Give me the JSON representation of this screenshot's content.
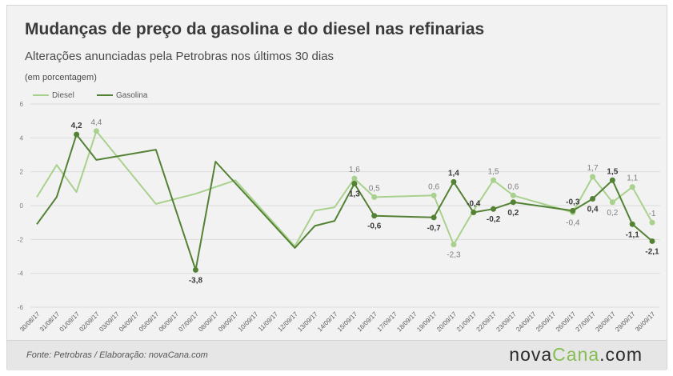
{
  "header": {
    "title": "Mudanças de preço da gasolina e do diesel nas refinarias",
    "subtitle": "Alterações anunciadas pela Petrobras nos últimos 30 dias",
    "unit": "(em porcentagem)"
  },
  "footer": {
    "source": "Fonte: Petrobras / Elaboração: novaCana.com",
    "brand_part1": "nova",
    "brand_part2": "Cana",
    "brand_part3": ".com"
  },
  "colors": {
    "diesel": "#a9d18e",
    "gasolina": "#548235",
    "card": "#f2f2f2"
  },
  "chart_data": {
    "type": "line",
    "legend_position": "top-left",
    "grid": true,
    "ylim": [
      -6,
      6
    ],
    "yticks": [
      "-6",
      "-4",
      "-2",
      "0",
      "2",
      "4",
      "6"
    ],
    "categories": [
      "30/08/17",
      "31/08/17",
      "01/09/17",
      "02/09/17",
      "03/09/17",
      "04/09/17",
      "05/09/17",
      "06/09/17",
      "07/09/17",
      "08/09/17",
      "09/09/17",
      "10/09/17",
      "11/09/17",
      "12/09/17",
      "13/09/17",
      "14/09/17",
      "15/09/17",
      "16/09/17",
      "17/09/17",
      "18/09/17",
      "19/09/17",
      "20/09/17",
      "21/09/17",
      "22/09/17",
      "23/09/17",
      "24/09/17",
      "25/09/17",
      "26/09/17",
      "27/09/17",
      "28/09/17",
      "29/09/17",
      "30/09/17"
    ],
    "series": [
      {
        "name": "Diesel",
        "values": [
          0.5,
          2.4,
          0.8,
          4.4,
          null,
          null,
          0.1,
          null,
          0.7,
          null,
          1.5,
          null,
          null,
          -2.4,
          -0.3,
          -0.1,
          1.6,
          0.5,
          null,
          null,
          0.6,
          -2.3,
          -0.3,
          1.5,
          0.6,
          null,
          null,
          -0.4,
          1.7,
          0.2,
          1.1,
          -1
        ],
        "data_labels": [
          {
            "index": 3,
            "text": "4,4"
          },
          {
            "index": 16,
            "text": "1,6"
          },
          {
            "index": 17,
            "text": "0,5"
          },
          {
            "index": 20,
            "text": "0,6"
          },
          {
            "index": 21,
            "text": "-2,3"
          },
          {
            "index": 23,
            "text": "1,5"
          },
          {
            "index": 24,
            "text": "0,6"
          },
          {
            "index": 27,
            "text": "-0,4"
          },
          {
            "index": 28,
            "text": "1,7"
          },
          {
            "index": 29,
            "text": "0,2"
          },
          {
            "index": 30,
            "text": "1,1"
          },
          {
            "index": 31,
            "text": "-1"
          }
        ]
      },
      {
        "name": "Gasolina",
        "values": [
          -1.1,
          0.5,
          4.2,
          2.7,
          null,
          null,
          3.3,
          null,
          -3.8,
          2.6,
          null,
          null,
          null,
          -2.5,
          -1.2,
          -0.9,
          1.3,
          -0.6,
          null,
          null,
          -0.7,
          1.4,
          -0.4,
          -0.2,
          0.2,
          null,
          null,
          -0.3,
          0.4,
          1.5,
          -1.1,
          -2.1
        ],
        "data_labels": [
          {
            "index": 2,
            "text": "4,2"
          },
          {
            "index": 8,
            "text": "-3,8"
          },
          {
            "index": 16,
            "text": "1,3"
          },
          {
            "index": 17,
            "text": "-0,6"
          },
          {
            "index": 20,
            "text": "-0,7"
          },
          {
            "index": 21,
            "text": "1,4"
          },
          {
            "index": 22,
            "text": "-0,4"
          },
          {
            "index": 23,
            "text": "-0,2"
          },
          {
            "index": 24,
            "text": "0,2"
          },
          {
            "index": 27,
            "text": "-0,3"
          },
          {
            "index": 28,
            "text": "0,4"
          },
          {
            "index": 29,
            "text": "1,5"
          },
          {
            "index": 30,
            "text": "-1,1"
          },
          {
            "index": 31,
            "text": "-2,1"
          }
        ]
      }
    ]
  }
}
